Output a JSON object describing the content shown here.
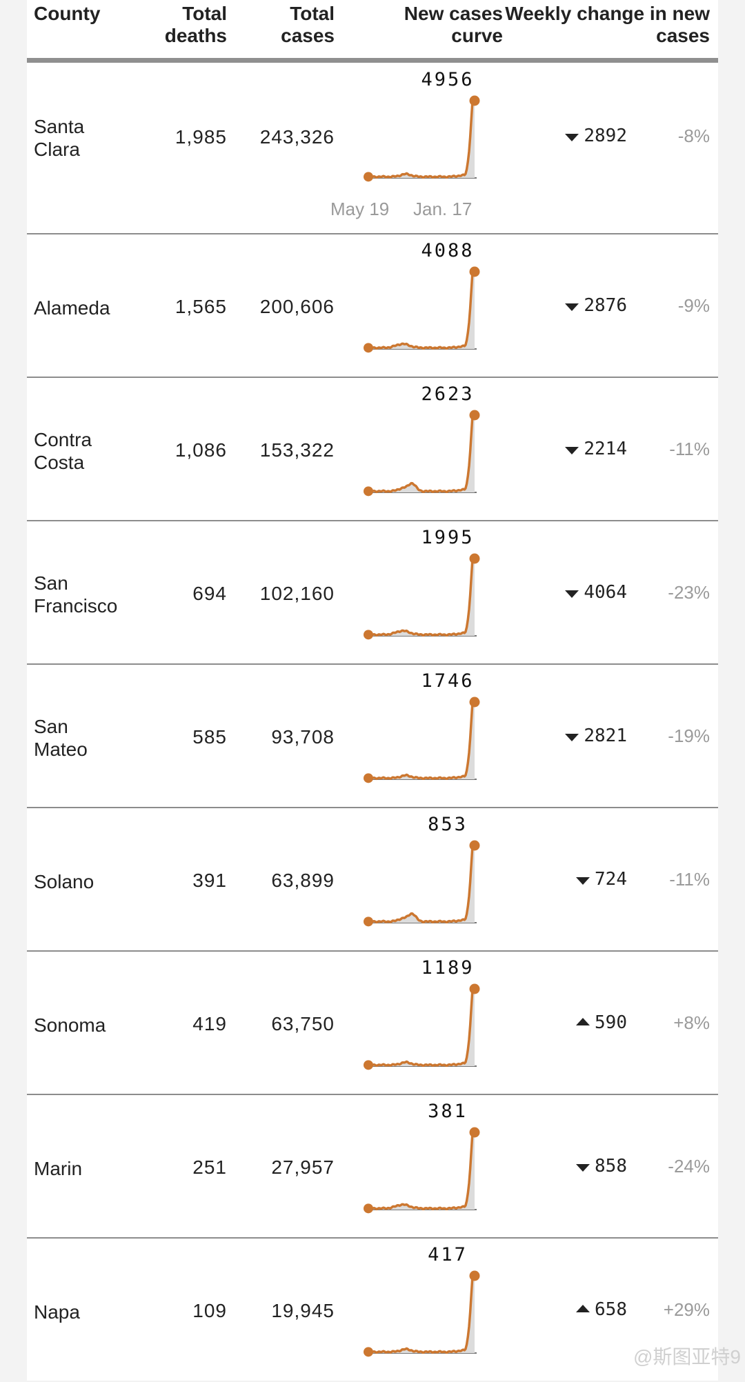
{
  "header": {
    "county": "County",
    "deaths": [
      "Total",
      "deaths"
    ],
    "cases": [
      "Total",
      "cases"
    ],
    "curve": [
      "New cases",
      "curve"
    ],
    "change": [
      "Weekly change in new",
      "cases"
    ]
  },
  "axis_labels": {
    "start": "May 19",
    "end": "Jan. 17"
  },
  "watermark": "@斯图亚特9",
  "colors": {
    "curve": "#cc7730",
    "fill": "#dcdcdc",
    "baseline": "#777777",
    "divider": "#8c8c8c"
  },
  "chart_data": {
    "type": "table",
    "columns": [
      "County",
      "Total deaths",
      "Total cases",
      "New cases curve",
      "Weekly change in new cases"
    ],
    "x_range": [
      "May 19",
      "Jan. 17"
    ],
    "rows": [
      {
        "name": [
          "Santa",
          "Clara"
        ],
        "deaths": "1,985",
        "cases": "243,326",
        "peak": "4956",
        "direction": "down",
        "change": "2892",
        "pct": "-8%",
        "profile": "a"
      },
      {
        "name": [
          "Alameda"
        ],
        "deaths": "1,565",
        "cases": "200,606",
        "peak": "4088",
        "direction": "down",
        "change": "2876",
        "pct": "-9%",
        "profile": "b"
      },
      {
        "name": [
          "Contra",
          "Costa"
        ],
        "deaths": "1,086",
        "cases": "153,322",
        "peak": "2623",
        "direction": "down",
        "change": "2214",
        "pct": "-11%",
        "profile": "c"
      },
      {
        "name": [
          "San",
          "Francisco"
        ],
        "deaths": "694",
        "cases": "102,160",
        "peak": "1995",
        "direction": "down",
        "change": "4064",
        "pct": "-23%",
        "profile": "b"
      },
      {
        "name": [
          "San",
          "Mateo"
        ],
        "deaths": "585",
        "cases": "93,708",
        "peak": "1746",
        "direction": "down",
        "change": "2821",
        "pct": "-19%",
        "profile": "a"
      },
      {
        "name": [
          "Solano"
        ],
        "deaths": "391",
        "cases": "63,899",
        "peak": "853",
        "direction": "down",
        "change": "724",
        "pct": "-11%",
        "profile": "c"
      },
      {
        "name": [
          "Sonoma"
        ],
        "deaths": "419",
        "cases": "63,750",
        "peak": "1189",
        "direction": "up",
        "change": "590",
        "pct": "+8%",
        "profile": "a"
      },
      {
        "name": [
          "Marin"
        ],
        "deaths": "251",
        "cases": "27,957",
        "peak": "381",
        "direction": "down",
        "change": "858",
        "pct": "-24%",
        "profile": "b"
      },
      {
        "name": [
          "Napa"
        ],
        "deaths": "109",
        "cases": "19,945",
        "peak": "417",
        "direction": "up",
        "change": "658",
        "pct": "+29%",
        "profile": "a"
      }
    ]
  }
}
